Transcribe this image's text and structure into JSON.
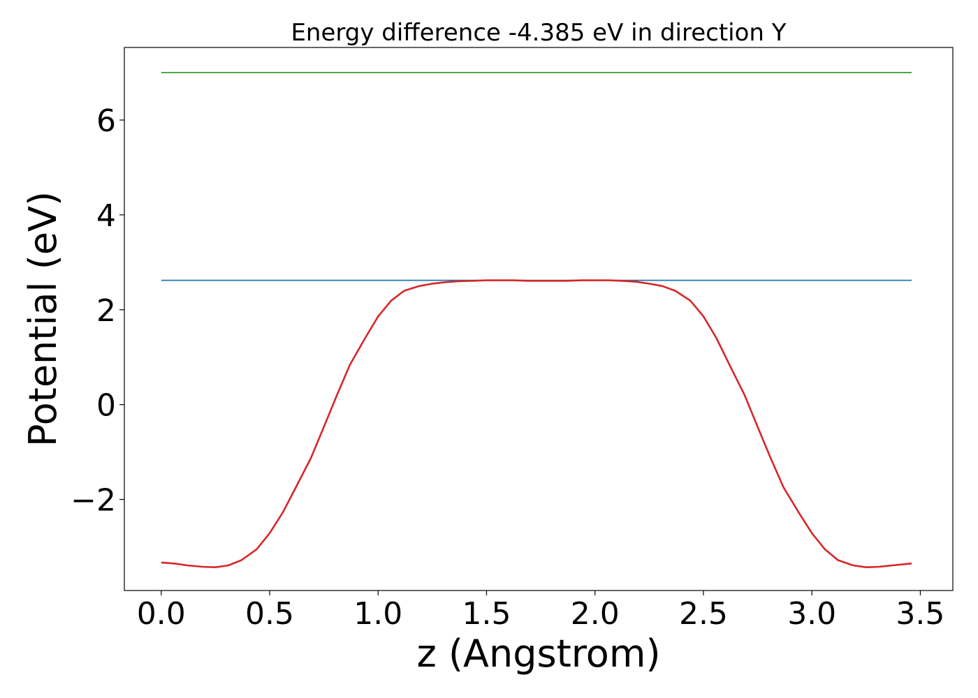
{
  "chart_data": {
    "type": "line",
    "title": "Energy difference -4.385 eV in direction Y",
    "xlabel": "z (Angstrom)",
    "ylabel": "Potential (eV)",
    "xlim": [
      -0.17,
      3.65
    ],
    "ylim": [
      -3.92,
      7.53
    ],
    "xticks": [
      0.0,
      0.5,
      1.0,
      1.5,
      2.0,
      2.5,
      3.0,
      3.5
    ],
    "xtick_labels": [
      "0.0",
      "0.5",
      "1.0",
      "1.5",
      "2.0",
      "2.5",
      "3.0",
      "3.5"
    ],
    "yticks": [
      -2,
      0,
      2,
      4,
      6
    ],
    "ytick_labels": [
      "−2",
      "0",
      "2",
      "4",
      "6"
    ],
    "grid": false,
    "series": [
      {
        "color": "#2ca02c",
        "x": [
          0.0,
          3.46
        ],
        "y": [
          7.0,
          7.0
        ]
      },
      {
        "color": "#1f77b4",
        "x": [
          0.0,
          3.46
        ],
        "y": [
          2.62,
          2.62
        ]
      },
      {
        "color": "#d62728",
        "x": [
          0.0,
          0.06,
          0.12,
          0.19,
          0.25,
          0.31,
          0.37,
          0.44,
          0.5,
          0.56,
          0.62,
          0.69,
          0.75,
          0.81,
          0.87,
          0.94,
          1.0,
          1.06,
          1.12,
          1.19,
          1.25,
          1.31,
          1.37,
          1.44,
          1.5,
          1.56,
          1.62,
          1.69,
          1.75,
          1.81,
          1.87,
          1.94,
          2.0,
          2.06,
          2.12,
          2.19,
          2.25,
          2.31,
          2.37,
          2.44,
          2.5,
          2.56,
          2.62,
          2.69,
          2.75,
          2.81,
          2.87,
          2.94,
          3.0,
          3.06,
          3.12,
          3.19,
          3.25,
          3.31,
          3.37,
          3.46
        ],
        "y": [
          -3.33,
          -3.35,
          -3.39,
          -3.42,
          -3.43,
          -3.39,
          -3.28,
          -3.05,
          -2.71,
          -2.28,
          -1.75,
          -1.13,
          -0.47,
          0.2,
          0.84,
          1.4,
          1.86,
          2.19,
          2.4,
          2.5,
          2.55,
          2.58,
          2.6,
          2.61,
          2.62,
          2.62,
          2.62,
          2.61,
          2.61,
          2.61,
          2.61,
          2.62,
          2.62,
          2.62,
          2.61,
          2.59,
          2.55,
          2.5,
          2.4,
          2.19,
          1.86,
          1.4,
          0.84,
          0.2,
          -0.47,
          -1.13,
          -1.75,
          -2.28,
          -2.71,
          -3.05,
          -3.28,
          -3.39,
          -3.43,
          -3.42,
          -3.39,
          -3.35
        ]
      }
    ]
  }
}
